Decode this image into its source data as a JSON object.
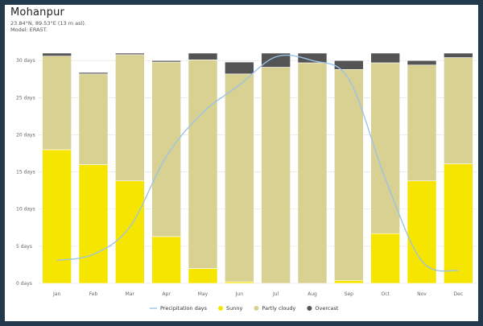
{
  "header": {
    "location": "Mohanpur",
    "coords": "23.84°N, 89.53°E (13 m asl).",
    "model": "Model: ERA5T."
  },
  "chart_data": {
    "type": "bar",
    "title": "",
    "xlabel": "",
    "ylabel": "",
    "ylim": [
      0,
      31
    ],
    "grid": true,
    "legend_position": "bottom",
    "categories": [
      "Jan",
      "Feb",
      "Mar",
      "Apr",
      "May",
      "Jun",
      "Jul",
      "Aug",
      "Sep",
      "Oct",
      "Nov",
      "Dec"
    ],
    "y_ticks": [
      "0 days",
      "5 days",
      "10 days",
      "15 days",
      "20 days",
      "25 days",
      "30 days"
    ],
    "series": [
      {
        "name": "Sunny",
        "color": "#f5e500",
        "values": [
          18.0,
          16.0,
          13.8,
          6.3,
          2.0,
          0.2,
          0.0,
          0.0,
          0.4,
          6.7,
          13.8,
          16.1
        ]
      },
      {
        "name": "Partly cloudy",
        "color": "#d8d191",
        "values": [
          12.6,
          12.2,
          17.0,
          23.5,
          28.1,
          28.0,
          29.1,
          29.7,
          28.4,
          23.0,
          15.6,
          14.3
        ]
      },
      {
        "name": "Overcast",
        "color": "#545454",
        "values": [
          0.4,
          0.2,
          0.2,
          0.2,
          0.9,
          1.6,
          1.9,
          1.3,
          1.2,
          1.3,
          0.6,
          0.6
        ]
      }
    ],
    "line_series": {
      "name": "Precipitation days",
      "color": "#9cc3e6",
      "values": [
        3.1,
        3.9,
        7.6,
        17.1,
        23.0,
        26.7,
        30.5,
        30.0,
        27.5,
        14.1,
        3.0,
        1.7
      ]
    }
  }
}
